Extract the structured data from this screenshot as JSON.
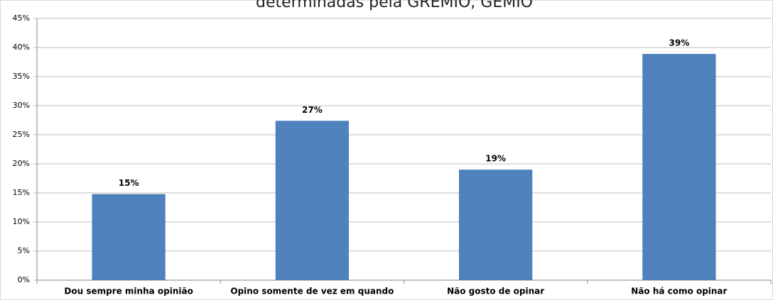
{
  "chart_data": {
    "type": "bar",
    "title": "determinadas pela GREMIO, GEMIO",
    "categories": [
      "Dou sempre minha opinião",
      "Opino somente de vez em quando",
      "Não gosto de opinar",
      "Não há como opinar"
    ],
    "values": [
      14.8,
      27.4,
      19,
      38.9
    ],
    "value_labels": [
      "15%",
      "27%",
      "19%",
      "39%"
    ],
    "color": "#4f81bd",
    "ylim": [
      0,
      45
    ],
    "yticks": [
      {
        "value": 0,
        "label": "0%"
      },
      {
        "value": 5,
        "label": "5%"
      },
      {
        "value": 10,
        "label": "10%"
      },
      {
        "value": 15,
        "label": "15%"
      },
      {
        "value": 20,
        "label": "20%"
      },
      {
        "value": 25,
        "label": "25%"
      },
      {
        "value": 30,
        "label": "30%"
      },
      {
        "value": 35,
        "label": "35%"
      },
      {
        "value": 40,
        "label": "40%"
      },
      {
        "value": 45,
        "label": "45%"
      }
    ],
    "grid": true
  }
}
